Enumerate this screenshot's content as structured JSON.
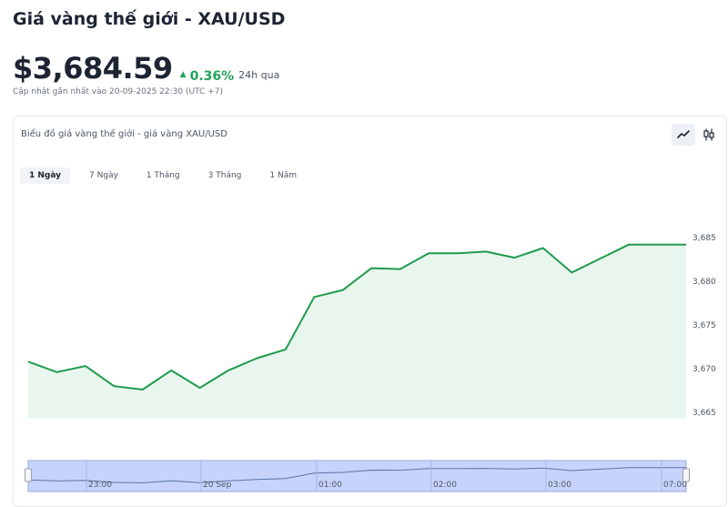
{
  "header": {
    "title": "Giá vàng thế giới - XAU/USD",
    "price": "$3,684.59",
    "change": "0.36%",
    "change_period": "24h qua",
    "updated": "Cập nhật gần nhất vào 20-09-2025 22:30 (UTC +7)"
  },
  "colors": {
    "up": "#22a35a",
    "line": "#1f9b4f",
    "area": "#e9f6ee",
    "navigator": "#c7d3fb"
  },
  "chart_card": {
    "title": "Biểu đồ giá vàng thế giới - giá vàng XAU/USD",
    "chart_type_buttons": [
      {
        "icon": "line-chart-icon",
        "active": true
      },
      {
        "icon": "candlestick-icon",
        "active": false
      }
    ],
    "tabs": [
      {
        "label": "1 Ngày",
        "active": true
      },
      {
        "label": "7 Ngày",
        "active": false
      },
      {
        "label": "1 Tháng",
        "active": false
      },
      {
        "label": "3 Tháng",
        "active": false
      },
      {
        "label": "1 Năm",
        "active": false
      }
    ]
  },
  "chart_data": {
    "type": "area",
    "title": "",
    "xlabel": "",
    "ylabel": "",
    "y_ticks": [
      "3,685",
      "3,680",
      "3,675",
      "3,670",
      "3,665"
    ],
    "y_tick_values": [
      3685,
      3680,
      3675,
      3670,
      3665
    ],
    "ylim": [
      3665,
      3686.5
    ],
    "grid": false,
    "legend": "none",
    "series": [
      {
        "values": [
          3670.8,
          3669.6,
          3670.3,
          3668.0,
          3667.6,
          3669.8,
          3667.8,
          3669.8,
          3671.2,
          3672.2,
          3678.2,
          3679.0,
          3681.5,
          3681.4,
          3683.2,
          3683.2,
          3683.4,
          3682.7,
          3683.8,
          3681.0,
          3682.6,
          3684.2,
          3684.2,
          3684.2
        ]
      }
    ],
    "navigator_ticks": [
      "23:00",
      "20 Sep",
      "01:00",
      "02:00",
      "03:00",
      "07:00"
    ]
  }
}
